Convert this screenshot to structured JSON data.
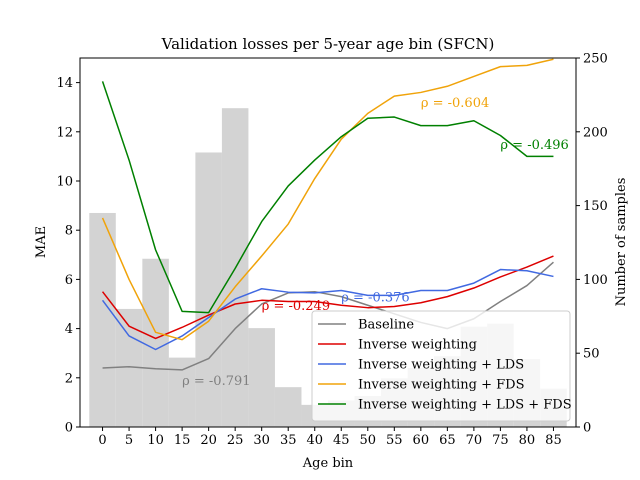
{
  "chart_data": {
    "type": "line",
    "title": "Validation losses per 5-year age bin (SFCN)",
    "xlabel": "Age bin",
    "ylabel": "MAE",
    "y2label": "Number of samples",
    "categories": [
      0,
      5,
      10,
      15,
      20,
      25,
      30,
      35,
      40,
      45,
      50,
      55,
      60,
      65,
      70,
      75,
      80,
      85
    ],
    "ylim": [
      0,
      15
    ],
    "y2lim": [
      0,
      250
    ],
    "yticks": [
      0,
      2,
      4,
      6,
      8,
      10,
      12,
      14
    ],
    "y2ticks": [
      0,
      50,
      100,
      150,
      200,
      250
    ],
    "grid": false,
    "legend_position": "bottom-right",
    "histogram": {
      "color": "#d3d3d3",
      "counts": [
        145,
        80,
        114,
        47,
        186,
        216,
        67,
        27,
        15,
        18,
        21,
        33,
        40,
        48,
        68,
        70,
        46,
        26
      ]
    },
    "series": [
      {
        "name": "Baseline",
        "color": "#808080",
        "values": [
          2.4,
          2.45,
          2.37,
          2.32,
          2.78,
          4.0,
          5.0,
          5.45,
          5.5,
          5.3,
          4.95,
          4.6,
          4.25,
          4.0,
          4.4,
          5.1,
          5.75,
          6.7
        ]
      },
      {
        "name": "Inverse weighting",
        "color": "#dd0000",
        "values": [
          5.5,
          4.1,
          3.6,
          4.05,
          4.55,
          5.0,
          5.15,
          5.1,
          5.1,
          4.95,
          4.85,
          4.9,
          5.05,
          5.3,
          5.65,
          6.1,
          6.5,
          6.95
        ]
      },
      {
        "name": "Inverse weighting + LDS",
        "color": "#4169e1",
        "values": [
          5.15,
          3.7,
          3.15,
          3.7,
          4.45,
          5.2,
          5.62,
          5.48,
          5.45,
          5.55,
          5.35,
          5.35,
          5.55,
          5.55,
          5.85,
          6.4,
          6.35,
          6.12
        ]
      },
      {
        "name": "Inverse weighting + FDS",
        "color": "#f0a30a",
        "values": [
          8.5,
          6.0,
          3.85,
          3.55,
          4.3,
          5.7,
          6.95,
          8.25,
          10.1,
          11.7,
          12.75,
          13.45,
          13.6,
          13.85,
          14.25,
          14.65,
          14.7,
          14.95
        ]
      },
      {
        "name": "Inverse weighting + LDS + FDS",
        "color": "#008000",
        "values": [
          14.05,
          10.85,
          7.2,
          4.7,
          4.65,
          6.45,
          8.35,
          9.8,
          10.85,
          11.8,
          12.55,
          12.6,
          12.25,
          12.25,
          12.45,
          11.85,
          11.0,
          11.0
        ]
      }
    ],
    "annotations": [
      {
        "text": "ρ = -0.791",
        "x": 15,
        "y": 1.7,
        "color": "#808080"
      },
      {
        "text": "ρ = -0.249",
        "x": 30,
        "y": 4.75,
        "color": "#dd0000"
      },
      {
        "text": "ρ = -0.376",
        "x": 45,
        "y": 5.1,
        "color": "#4169e1"
      },
      {
        "text": "ρ = -0.604",
        "x": 60,
        "y": 13.0,
        "color": "#f0a30a"
      },
      {
        "text": "ρ = -0.496",
        "x": 75,
        "y": 11.3,
        "color": "#008000"
      }
    ]
  }
}
